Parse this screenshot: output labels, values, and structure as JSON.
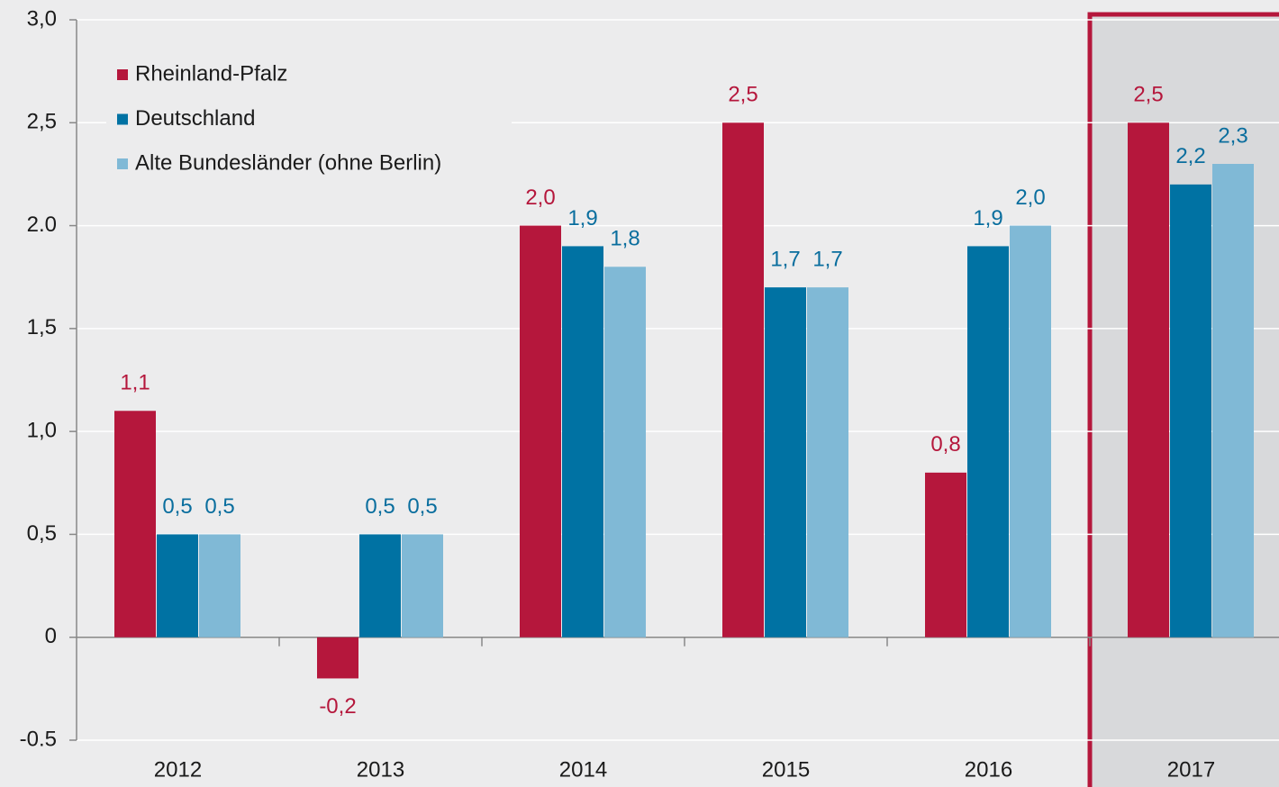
{
  "chart_data": {
    "type": "bar",
    "categories": [
      "2012",
      "2013",
      "2014",
      "2015",
      "2016",
      "2017"
    ],
    "series": [
      {
        "name": "Rheinland-Pfalz",
        "color": "#b5173c",
        "label_color": "#b5173c",
        "values": [
          1.1,
          -0.2,
          2.0,
          2.5,
          0.8,
          2.5
        ],
        "value_labels": [
          "1,1",
          "-0,2",
          "2,0",
          "2,5",
          "0,8",
          "2,5"
        ]
      },
      {
        "name": "Deutschland",
        "color": "#0072a3",
        "label_color": "#0a6e9e",
        "values": [
          0.5,
          0.5,
          1.9,
          1.7,
          1.9,
          2.2
        ],
        "value_labels": [
          "0,5",
          "0,5",
          "1,9",
          "1,7",
          "1,9",
          "2,2"
        ]
      },
      {
        "name": "Alte Bundesländer (ohne Berlin)",
        "color": "#80b9d6",
        "label_color": "#0a6e9e",
        "values": [
          0.5,
          0.5,
          1.8,
          1.7,
          2.0,
          2.3
        ],
        "value_labels": [
          "0,5",
          "0,5",
          "1,8",
          "1,7",
          "2,0",
          "2,3"
        ]
      }
    ],
    "ylim": [
      -0.5,
      3.0
    ],
    "yticks": [
      {
        "value": -0.5,
        "label": "-0.5"
      },
      0,
      {
        "value": 0.5,
        "label": "0,5"
      },
      {
        "value": 1.0,
        "label": "1,0"
      },
      {
        "value": 1.5,
        "label": "1,5"
      },
      {
        "value": 2.0,
        "label": "2.0"
      },
      {
        "value": 2.5,
        "label": "2,5"
      },
      {
        "value": 3.0,
        "label": "3,0"
      }
    ],
    "grid": true,
    "legend": "top-left",
    "highlight": 5
  }
}
